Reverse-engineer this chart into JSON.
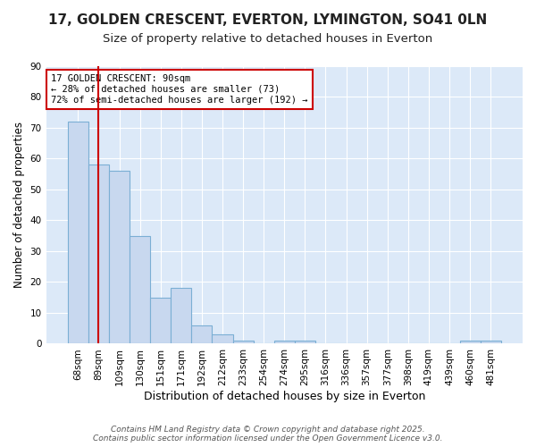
{
  "title1": "17, GOLDEN CRESCENT, EVERTON, LYMINGTON, SO41 0LN",
  "title2": "Size of property relative to detached houses in Everton",
  "xlabel": "Distribution of detached houses by size in Everton",
  "ylabel": "Number of detached properties",
  "categories": [
    "68sqm",
    "89sqm",
    "109sqm",
    "130sqm",
    "151sqm",
    "171sqm",
    "192sqm",
    "212sqm",
    "233sqm",
    "254sqm",
    "274sqm",
    "295sqm",
    "316sqm",
    "336sqm",
    "357sqm",
    "377sqm",
    "398sqm",
    "419sqm",
    "439sqm",
    "460sqm",
    "481sqm"
  ],
  "values": [
    72,
    58,
    56,
    35,
    15,
    18,
    6,
    3,
    1,
    0,
    1,
    1,
    0,
    0,
    0,
    0,
    0,
    0,
    0,
    1,
    1
  ],
  "bar_color": "#c8d8ef",
  "bar_edge_color": "#7bafd4",
  "vline_x": 1,
  "vline_color": "#cc0000",
  "annotation_text": "17 GOLDEN CRESCENT: 90sqm\n← 28% of detached houses are smaller (73)\n72% of semi-detached houses are larger (192) →",
  "annotation_box_facecolor": "#ffffff",
  "annotation_box_edgecolor": "#cc0000",
  "ylim": [
    0,
    90
  ],
  "yticks": [
    0,
    10,
    20,
    30,
    40,
    50,
    60,
    70,
    80,
    90
  ],
  "fig_bg_color": "#ffffff",
  "plot_bg_color": "#dce9f8",
  "grid_color": "#ffffff",
  "footer1": "Contains HM Land Registry data © Crown copyright and database right 2025.",
  "footer2": "Contains public sector information licensed under the Open Government Licence v3.0.",
  "title1_fontsize": 11,
  "title2_fontsize": 9.5,
  "tick_fontsize": 7.5,
  "xlabel_fontsize": 9,
  "ylabel_fontsize": 8.5,
  "footer_fontsize": 6.5,
  "annot_fontsize": 7.5
}
